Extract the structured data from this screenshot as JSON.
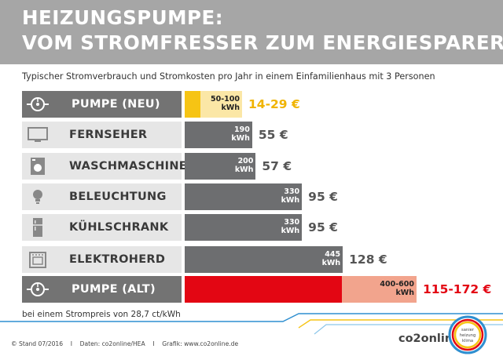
{
  "header": {
    "title_line1": "HEIZUNGSPUMPE:",
    "title_line2": "VOM STROMFRESSER ZUM ENERGIESPARER"
  },
  "subtitle": "Typischer Stromverbrauch und Stromkosten pro Jahr in einem Einfamilienhaus mit 3 Personen",
  "chart_data": {
    "type": "bar",
    "orientation": "horizontal",
    "title": "HEIZUNGSPUMPE: VOM STROMFRESSER ZUM ENERGIESPARER",
    "subtitle": "Typischer Stromverbrauch und Stromkosten pro Jahr in einem Einfamilienhaus mit 3 Personen",
    "unit": "kWh",
    "categories": [
      "PUMPE (NEU)",
      "FERNSEHER",
      "WASCHMASCHINE",
      "BELEUCHTUNG",
      "KÜHLSCHRANK",
      "ELEKTROHERD",
      "PUMPE (ALT)"
    ],
    "rows": [
      {
        "label": "PUMPE (NEU)",
        "icon": "pump-icon",
        "kwh_min": 50,
        "kwh_max": 100,
        "kwh_label": [
          "50-100",
          "kWh"
        ],
        "cost_label": "14-29 €",
        "style": "yellow"
      },
      {
        "label": "FERNSEHER",
        "icon": "tv-icon",
        "kwh": 190,
        "kwh_label": [
          "190",
          "kWh"
        ],
        "cost_label": "55 €",
        "style": "gray"
      },
      {
        "label": "WASCHMASCHINE",
        "icon": "washing-machine-icon",
        "kwh": 200,
        "kwh_label": [
          "200",
          "kWh"
        ],
        "cost_label": "57 €",
        "style": "gray"
      },
      {
        "label": "BELEUCHTUNG",
        "icon": "light-bulb-icon",
        "kwh": 330,
        "kwh_label": [
          "330",
          "kWh"
        ],
        "cost_label": "95 €",
        "style": "gray"
      },
      {
        "label": "KÜHLSCHRANK",
        "icon": "fridge-icon",
        "kwh": 330,
        "kwh_label": [
          "330",
          "kWh"
        ],
        "cost_label": "95 €",
        "style": "gray"
      },
      {
        "label": "ELEKTROHERD",
        "icon": "stove-icon",
        "kwh": 445,
        "kwh_label": [
          "445",
          "kWh"
        ],
        "cost_label": "128 €",
        "style": "gray"
      },
      {
        "label": "PUMPE (ALT)",
        "icon": "pump-icon",
        "kwh_min": 400,
        "kwh_max": 600,
        "kwh_label": [
          "400-600",
          "kWh"
        ],
        "cost_label": "115-172 €",
        "style": "red"
      }
    ],
    "colors": {
      "gray_bar": "#6d6e70",
      "new_pump_min": "#f6c414",
      "new_pump_range": "#fbe7a6",
      "old_pump_min": "#e30613",
      "old_pump_range": "#f2a48d",
      "new_pump_cost": "#f0b400",
      "old_pump_cost": "#e30613"
    }
  },
  "footnote": "bei einem Strompreis von 28,7 ct/kWh",
  "footer": {
    "copyright_symbol": "©",
    "stand": "Stand 07/2016",
    "sep": "I",
    "daten": "Daten: co2online/HEA",
    "grafik": "Grafik: www.co2online.de"
  },
  "brand": "co2online",
  "seal_text": [
    "sanier",
    "heizung",
    "klima"
  ]
}
